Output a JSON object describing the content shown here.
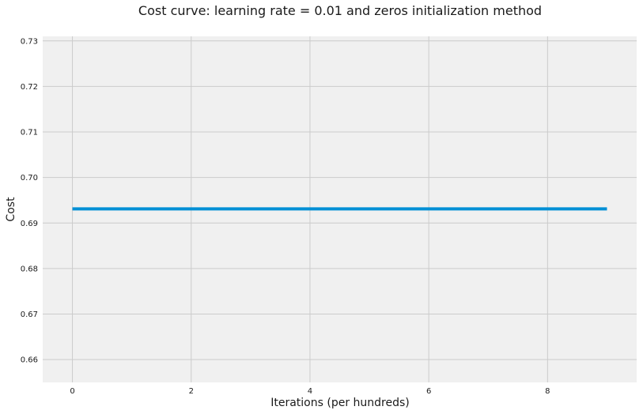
{
  "chart_data": {
    "type": "line",
    "title": "Cost curve: learning rate = 0.01 and zeros initialization method",
    "xlabel": "Iterations (per hundreds)",
    "ylabel": "Cost",
    "xlim": [
      -0.5,
      9.5
    ],
    "ylim": [
      0.655,
      0.731
    ],
    "xticks": [
      0,
      2,
      4,
      6,
      8
    ],
    "yticks": [
      0.66,
      0.67,
      0.68,
      0.69,
      0.7,
      0.71,
      0.72,
      0.73
    ],
    "xtick_labels": [
      "0",
      "2",
      "4",
      "6",
      "8"
    ],
    "ytick_labels": [
      "0.66",
      "0.67",
      "0.68",
      "0.69",
      "0.70",
      "0.71",
      "0.72",
      "0.73"
    ],
    "grid": true,
    "series": [
      {
        "x": [
          0,
          1,
          2,
          3,
          4,
          5,
          6,
          7,
          8,
          9
        ],
        "values": [
          0.6931,
          0.6931,
          0.6931,
          0.6931,
          0.6931,
          0.6931,
          0.6931,
          0.6931,
          0.6931,
          0.6931
        ],
        "color": "#008fd5"
      }
    ],
    "colors": {
      "plot_background": "#f0f0f0",
      "grid": "#cbcbcb",
      "figure_background": "#ffffff"
    }
  }
}
